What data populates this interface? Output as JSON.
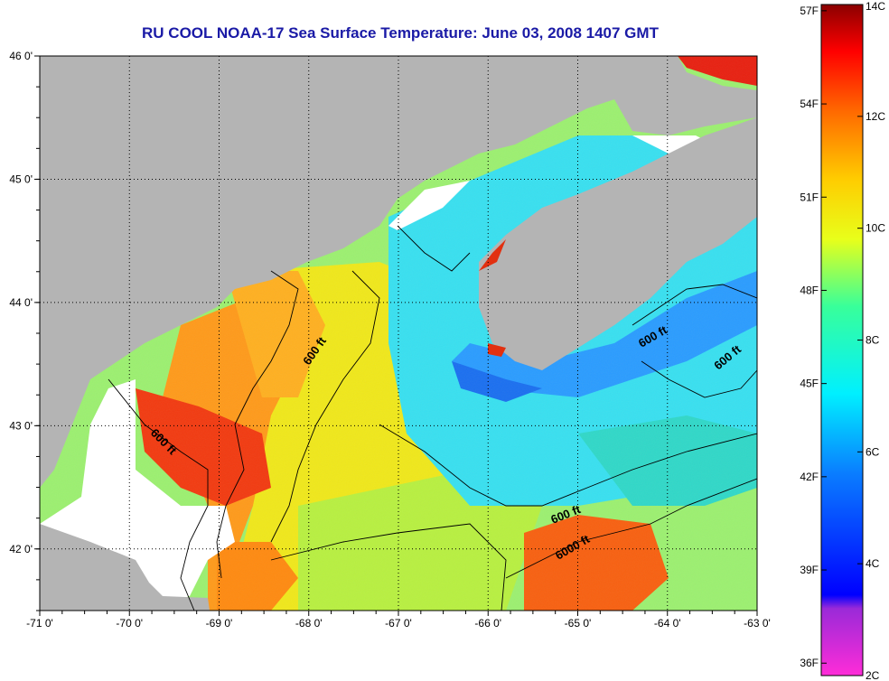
{
  "title": "RU COOL  NOAA-17  Sea Surface Temperature:  June 03, 2008 1407 GMT",
  "map": {
    "lon_range": [
      -71,
      -63
    ],
    "lat_range": [
      41.5,
      46
    ],
    "lon_ticks": [
      "-71 0'",
      "-70 0'",
      "-69 0'",
      "-68 0'",
      "-67 0'",
      "-66 0'",
      "-65 0'",
      "-64 0'",
      "-63 0'"
    ],
    "lat_ticks": [
      "46 0'",
      "45 0'",
      "44 0'",
      "43 0'",
      "42 0'"
    ],
    "land_color": "#b4b4b4",
    "cloud_color": "#ffffff",
    "contour_labels": [
      "600 ft",
      "600 ft",
      "600 ft",
      "600 ft",
      "600 ft",
      "6000 ft"
    ]
  },
  "colorbar": {
    "fahrenheit_labels": [
      "57F",
      "54F",
      "51F",
      "48F",
      "45F",
      "42F",
      "39F",
      "36F"
    ],
    "celsius_labels": [
      "14C",
      "12C",
      "10C",
      "8C",
      "6C",
      "4C",
      "2C"
    ],
    "range_c": [
      2,
      14
    ]
  }
}
